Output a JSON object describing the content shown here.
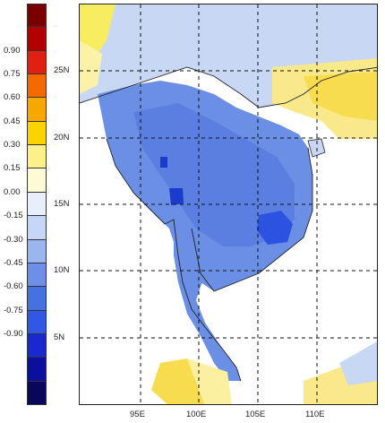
{
  "colorbar": {
    "labels": [
      "0.90",
      "0.75",
      "0.60",
      "0.45",
      "0.30",
      "0.15",
      "0.00",
      "-0.15",
      "-0.30",
      "-0.45",
      "-0.60",
      "-0.75",
      "-0.90"
    ],
    "colors": [
      "#7a0000",
      "#b30000",
      "#e02010",
      "#f46a00",
      "#f7a800",
      "#f9d400",
      "#fcf08a",
      "#fdfbd6",
      "#e8eefb",
      "#c5d6f6",
      "#9bb6ee",
      "#6d8fe6",
      "#4672e0",
      "#2f58e6",
      "#1a28d0",
      "#0a0f9e",
      "#08075a"
    ]
  },
  "axes": {
    "lat_labels": [
      "25N",
      "20N",
      "15N",
      "10N",
      "5N"
    ],
    "lon_labels": [
      "95E",
      "100E",
      "105E",
      "110E"
    ]
  }
}
